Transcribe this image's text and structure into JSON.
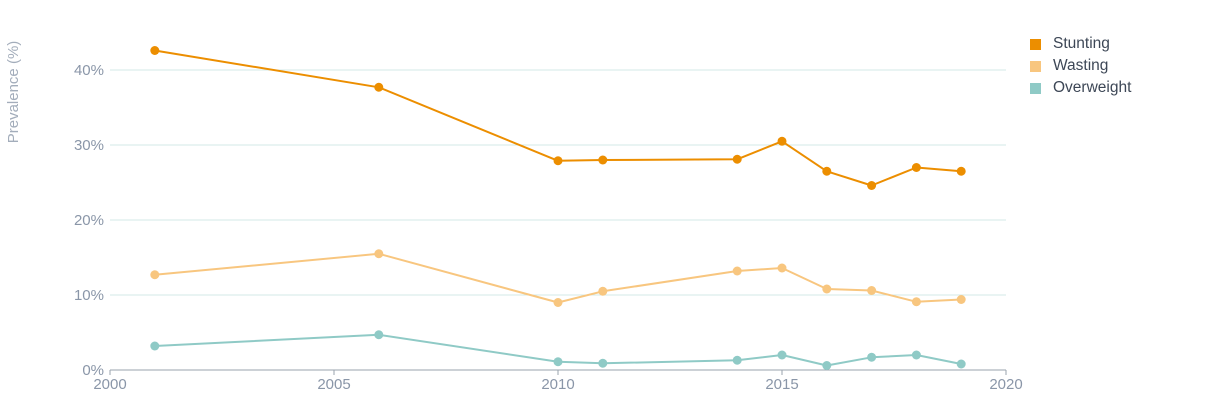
{
  "chart_data": {
    "type": "line",
    "ylabel": "Prevalence (%)",
    "xlim": [
      2000,
      2020
    ],
    "ylim": [
      0,
      45
    ],
    "x_ticks": [
      2000,
      2005,
      2010,
      2015,
      2020
    ],
    "y_ticks": [
      0,
      10,
      20,
      30,
      40
    ],
    "y_tick_labels": [
      "0%",
      "10%",
      "20%",
      "30%",
      "40%"
    ],
    "grid": true,
    "legend_position": "top-right",
    "series": [
      {
        "name": "Stunting",
        "color": "#ec8e00",
        "points": [
          [
            2001,
            42.6
          ],
          [
            2006,
            37.7
          ],
          [
            2010,
            27.9
          ],
          [
            2011,
            28.0
          ],
          [
            2014,
            28.1
          ],
          [
            2015,
            30.5
          ],
          [
            2016,
            26.5
          ],
          [
            2017,
            24.6
          ],
          [
            2018,
            27.0
          ],
          [
            2019,
            26.5
          ]
        ]
      },
      {
        "name": "Wasting",
        "color": "#f8c67f",
        "points": [
          [
            2001,
            12.7
          ],
          [
            2006,
            15.5
          ],
          [
            2010,
            9.0
          ],
          [
            2011,
            10.5
          ],
          [
            2014,
            13.2
          ],
          [
            2015,
            13.6
          ],
          [
            2016,
            10.8
          ],
          [
            2017,
            10.6
          ],
          [
            2018,
            9.1
          ],
          [
            2019,
            9.4
          ]
        ]
      },
      {
        "name": "Overweight",
        "color": "#8fcac6",
        "points": [
          [
            2001,
            3.2
          ],
          [
            2006,
            4.7
          ],
          [
            2010,
            1.1
          ],
          [
            2011,
            0.9
          ],
          [
            2014,
            1.3
          ],
          [
            2015,
            2.0
          ],
          [
            2016,
            0.6
          ],
          [
            2017,
            1.7
          ],
          [
            2018,
            2.0
          ],
          [
            2019,
            0.8
          ]
        ]
      }
    ]
  }
}
